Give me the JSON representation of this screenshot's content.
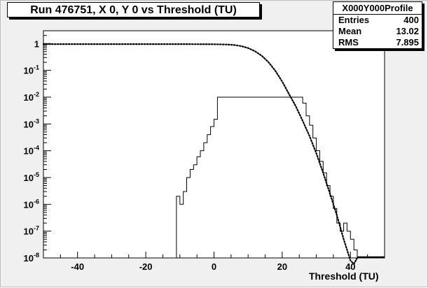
{
  "title": "Run 476751, X 0, Y 0 vs Threshold (TU)",
  "stats": {
    "name": "X000Y000Profile",
    "rows": [
      {
        "label": "Entries",
        "value": "400"
      },
      {
        "label": "Mean",
        "value": "13.02"
      },
      {
        "label": "RMS",
        "value": "7.895"
      }
    ]
  },
  "chart_data": {
    "type": "line",
    "xlabel": "Threshold (TU)",
    "xlim": [
      -50,
      50
    ],
    "ylim": [
      1e-08,
      3
    ],
    "yscale": "log",
    "grid": false,
    "x_ticks": [
      -40,
      -20,
      0,
      20,
      40
    ],
    "y_ticks": [
      {
        "exp": 0,
        "label": "1"
      },
      {
        "exp": -1,
        "label": "10",
        "sup": "-1"
      },
      {
        "exp": -2,
        "label": "10",
        "sup": "-2"
      },
      {
        "exp": -3,
        "label": "10",
        "sup": "-3"
      },
      {
        "exp": -4,
        "label": "10",
        "sup": "-4"
      },
      {
        "exp": -5,
        "label": "10",
        "sup": "-5"
      },
      {
        "exp": -6,
        "label": "10",
        "sup": "-6"
      },
      {
        "exp": -7,
        "label": "10",
        "sup": "-7"
      },
      {
        "exp": -8,
        "label": "10",
        "sup": "-8"
      }
    ],
    "series": [
      {
        "style": "dotted",
        "color": "#000000",
        "x": [
          -50,
          -30,
          -10,
          0,
          4,
          6,
          8,
          10,
          12,
          14,
          16,
          18,
          20,
          22,
          24,
          26,
          28,
          30,
          32,
          34,
          36,
          38,
          40,
          41,
          42
        ],
        "y": [
          0.95,
          0.95,
          0.95,
          0.94,
          0.92,
          0.88,
          0.8,
          0.68,
          0.52,
          0.35,
          0.2,
          0.095,
          0.038,
          0.013,
          0.0045,
          0.0013,
          0.00035,
          8e-05,
          1.5e-05,
          2.5e-06,
          4e-07,
          5e-08,
          8e-09,
          6e-09,
          1e-08
        ]
      },
      {
        "style": "step",
        "color": "#000000",
        "x": [
          -11,
          -10,
          -9,
          -8,
          -7,
          -6,
          -5,
          -4,
          -3,
          -2,
          -1,
          0,
          1,
          25,
          26,
          27,
          28,
          29,
          30,
          31,
          32,
          33,
          34,
          35,
          36,
          37,
          38,
          39,
          40,
          41,
          42
        ],
        "y": [
          2e-06,
          1e-06,
          3e-06,
          1e-05,
          2e-05,
          3e-05,
          6e-05,
          0.0001,
          0.0002,
          0.0004,
          0.0008,
          0.0015,
          0.01,
          0.01,
          0.006,
          0.002,
          0.0009,
          0.0003,
          0.0001,
          4e-05,
          1.5e-05,
          5e-06,
          2e-06,
          7e-07,
          2e-07,
          1e-07,
          2e-07,
          1e-07,
          5e-08,
          2e-08,
          1e-08
        ]
      }
    ]
  }
}
